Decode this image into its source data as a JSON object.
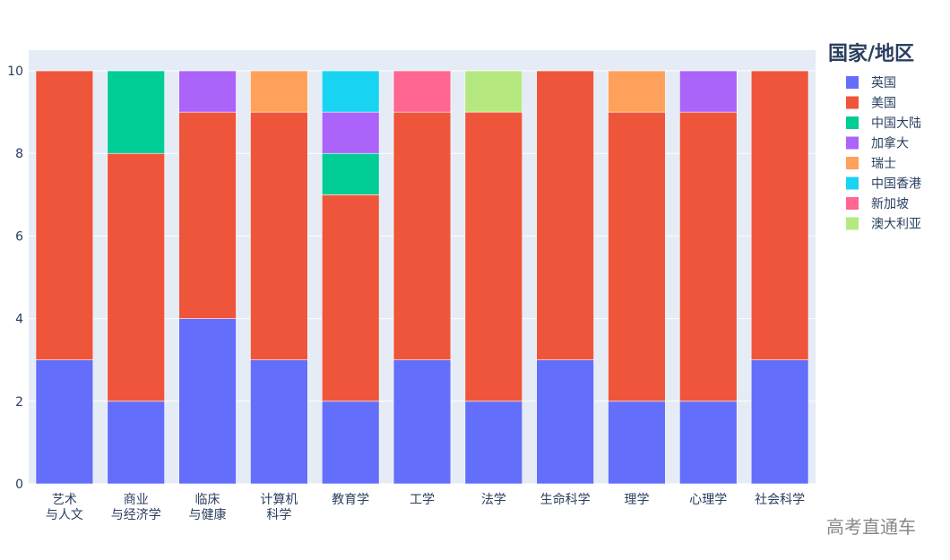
{
  "chart_data": {
    "type": "bar",
    "stacked": true,
    "categories": [
      "艺术\n与人文",
      "商业\n与经济学",
      "临床\n与健康",
      "计算机\n科学",
      "教育学",
      "工学",
      "法学",
      "生命科学",
      "理学",
      "心理学",
      "社会科学"
    ],
    "series": [
      {
        "name": "英国",
        "color": "#636efa",
        "values": [
          3,
          2,
          4,
          3,
          2,
          3,
          2,
          3,
          2,
          2,
          3
        ]
      },
      {
        "name": "美国",
        "color": "#ef553b",
        "values": [
          7,
          6,
          5,
          6,
          5,
          6,
          7,
          7,
          7,
          7,
          7
        ]
      },
      {
        "name": "中国大陆",
        "color": "#00cc96",
        "values": [
          0,
          2,
          0,
          0,
          1,
          0,
          0,
          0,
          0,
          0,
          0
        ]
      },
      {
        "name": "加拿大",
        "color": "#ab63fa",
        "values": [
          0,
          0,
          1,
          0,
          1,
          0,
          0,
          0,
          0,
          1,
          0
        ]
      },
      {
        "name": "瑞士",
        "color": "#ffa15a",
        "values": [
          0,
          0,
          0,
          1,
          0,
          0,
          0,
          0,
          1,
          0,
          0
        ]
      },
      {
        "name": "中国香港",
        "color": "#19d3f3",
        "values": [
          0,
          0,
          0,
          0,
          1,
          0,
          0,
          0,
          0,
          0,
          0
        ]
      },
      {
        "name": "新加坡",
        "color": "#ff6692",
        "values": [
          0,
          0,
          0,
          0,
          0,
          1,
          0,
          0,
          0,
          0,
          0
        ]
      },
      {
        "name": "澳大利亚",
        "color": "#b6e880",
        "values": [
          0,
          0,
          0,
          0,
          0,
          0,
          1,
          0,
          0,
          0,
          0
        ]
      }
    ],
    "ylim": [
      0,
      10.5
    ],
    "yticks": [
      0,
      2,
      4,
      6,
      8,
      10
    ],
    "grid": true,
    "legend_title": "国家/地区",
    "legend_position": "right"
  },
  "watermark": "高考直通车"
}
